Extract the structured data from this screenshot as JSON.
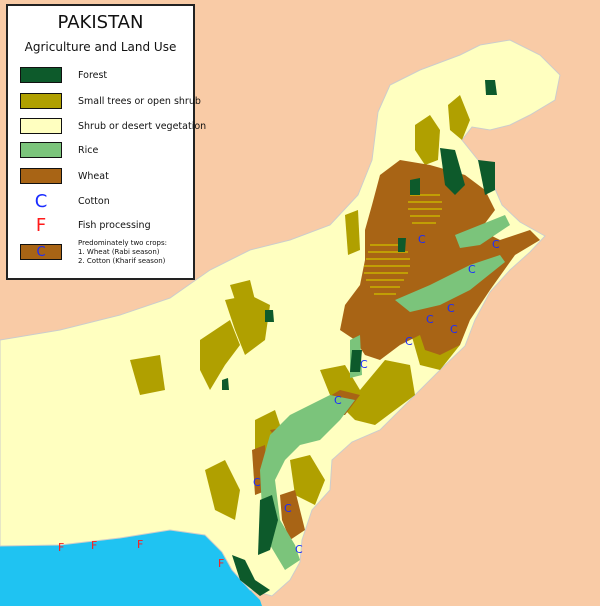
{
  "legend": {
    "title": "PAKISTAN",
    "subtitle": "Agriculture and Land Use",
    "items": [
      {
        "label": "Forest",
        "color": "#0d5a2b",
        "type": "swatch"
      },
      {
        "label": "Small trees or open shrub",
        "color": "#b0a000",
        "type": "swatch"
      },
      {
        "label": "Shrub or desert vegetation",
        "color": "#ffffc0",
        "type": "swatch"
      },
      {
        "label": "Rice",
        "color": "#7bc47b",
        "type": "swatch"
      },
      {
        "label": "Wheat",
        "color": "#a86415",
        "type": "swatch"
      },
      {
        "label": "Cotton",
        "symbol": "C",
        "color": "#1a2cff",
        "type": "symbol"
      },
      {
        "label": "Fish processing",
        "symbol": "F",
        "color": "#ff1a1a",
        "type": "symbol"
      },
      {
        "label_lines": [
          "Predominately two crops:",
          "1. Wheat (Rabi season)",
          "2. Cotton (Kharif season)"
        ],
        "symbol": "C",
        "color": "#a86415",
        "type": "swatch-symbol"
      }
    ]
  },
  "colors": {
    "background": "#f9cba6",
    "sea": "#1fc3f2",
    "country": "#ffffc0"
  },
  "map_markers": {
    "cotton": "C",
    "fish": "F"
  }
}
